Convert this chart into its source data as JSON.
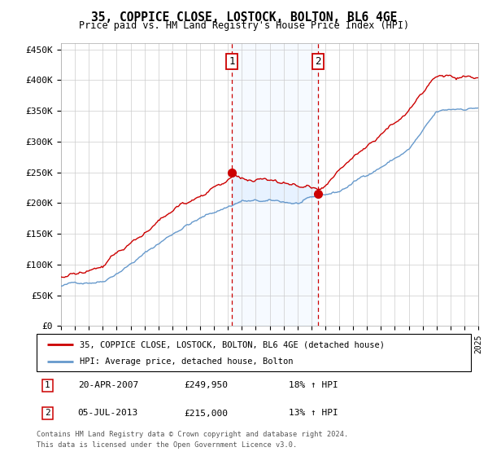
{
  "title": "35, COPPICE CLOSE, LOSTOCK, BOLTON, BL6 4GE",
  "subtitle": "Price paid vs. HM Land Registry's House Price Index (HPI)",
  "ylim": [
    0,
    460000
  ],
  "yticks": [
    0,
    50000,
    100000,
    150000,
    200000,
    250000,
    300000,
    350000,
    400000,
    450000
  ],
  "ytick_labels": [
    "£0",
    "£50K",
    "£100K",
    "£150K",
    "£200K",
    "£250K",
    "£300K",
    "£350K",
    "£400K",
    "£450K"
  ],
  "sale1_date_num": 2007.3,
  "sale1_price": 249950,
  "sale1_label": "1",
  "sale1_date_str": "20-APR-2007",
  "sale1_pct": "18% ↑ HPI",
  "sale2_date_num": 2013.5,
  "sale2_price": 215000,
  "sale2_label": "2",
  "sale2_date_str": "05-JUL-2013",
  "sale2_pct": "13% ↑ HPI",
  "legend_line1": "35, COPPICE CLOSE, LOSTOCK, BOLTON, BL6 4GE (detached house)",
  "legend_line2": "HPI: Average price, detached house, Bolton",
  "footer1": "Contains HM Land Registry data © Crown copyright and database right 2024.",
  "footer2": "This data is licensed under the Open Government Licence v3.0.",
  "red_color": "#cc0000",
  "blue_color": "#6699cc",
  "shading_color": "#ddeeff",
  "background_color": "#ffffff",
  "grid_color": "#cccccc",
  "xlim_start": 1995,
  "xlim_end": 2025
}
